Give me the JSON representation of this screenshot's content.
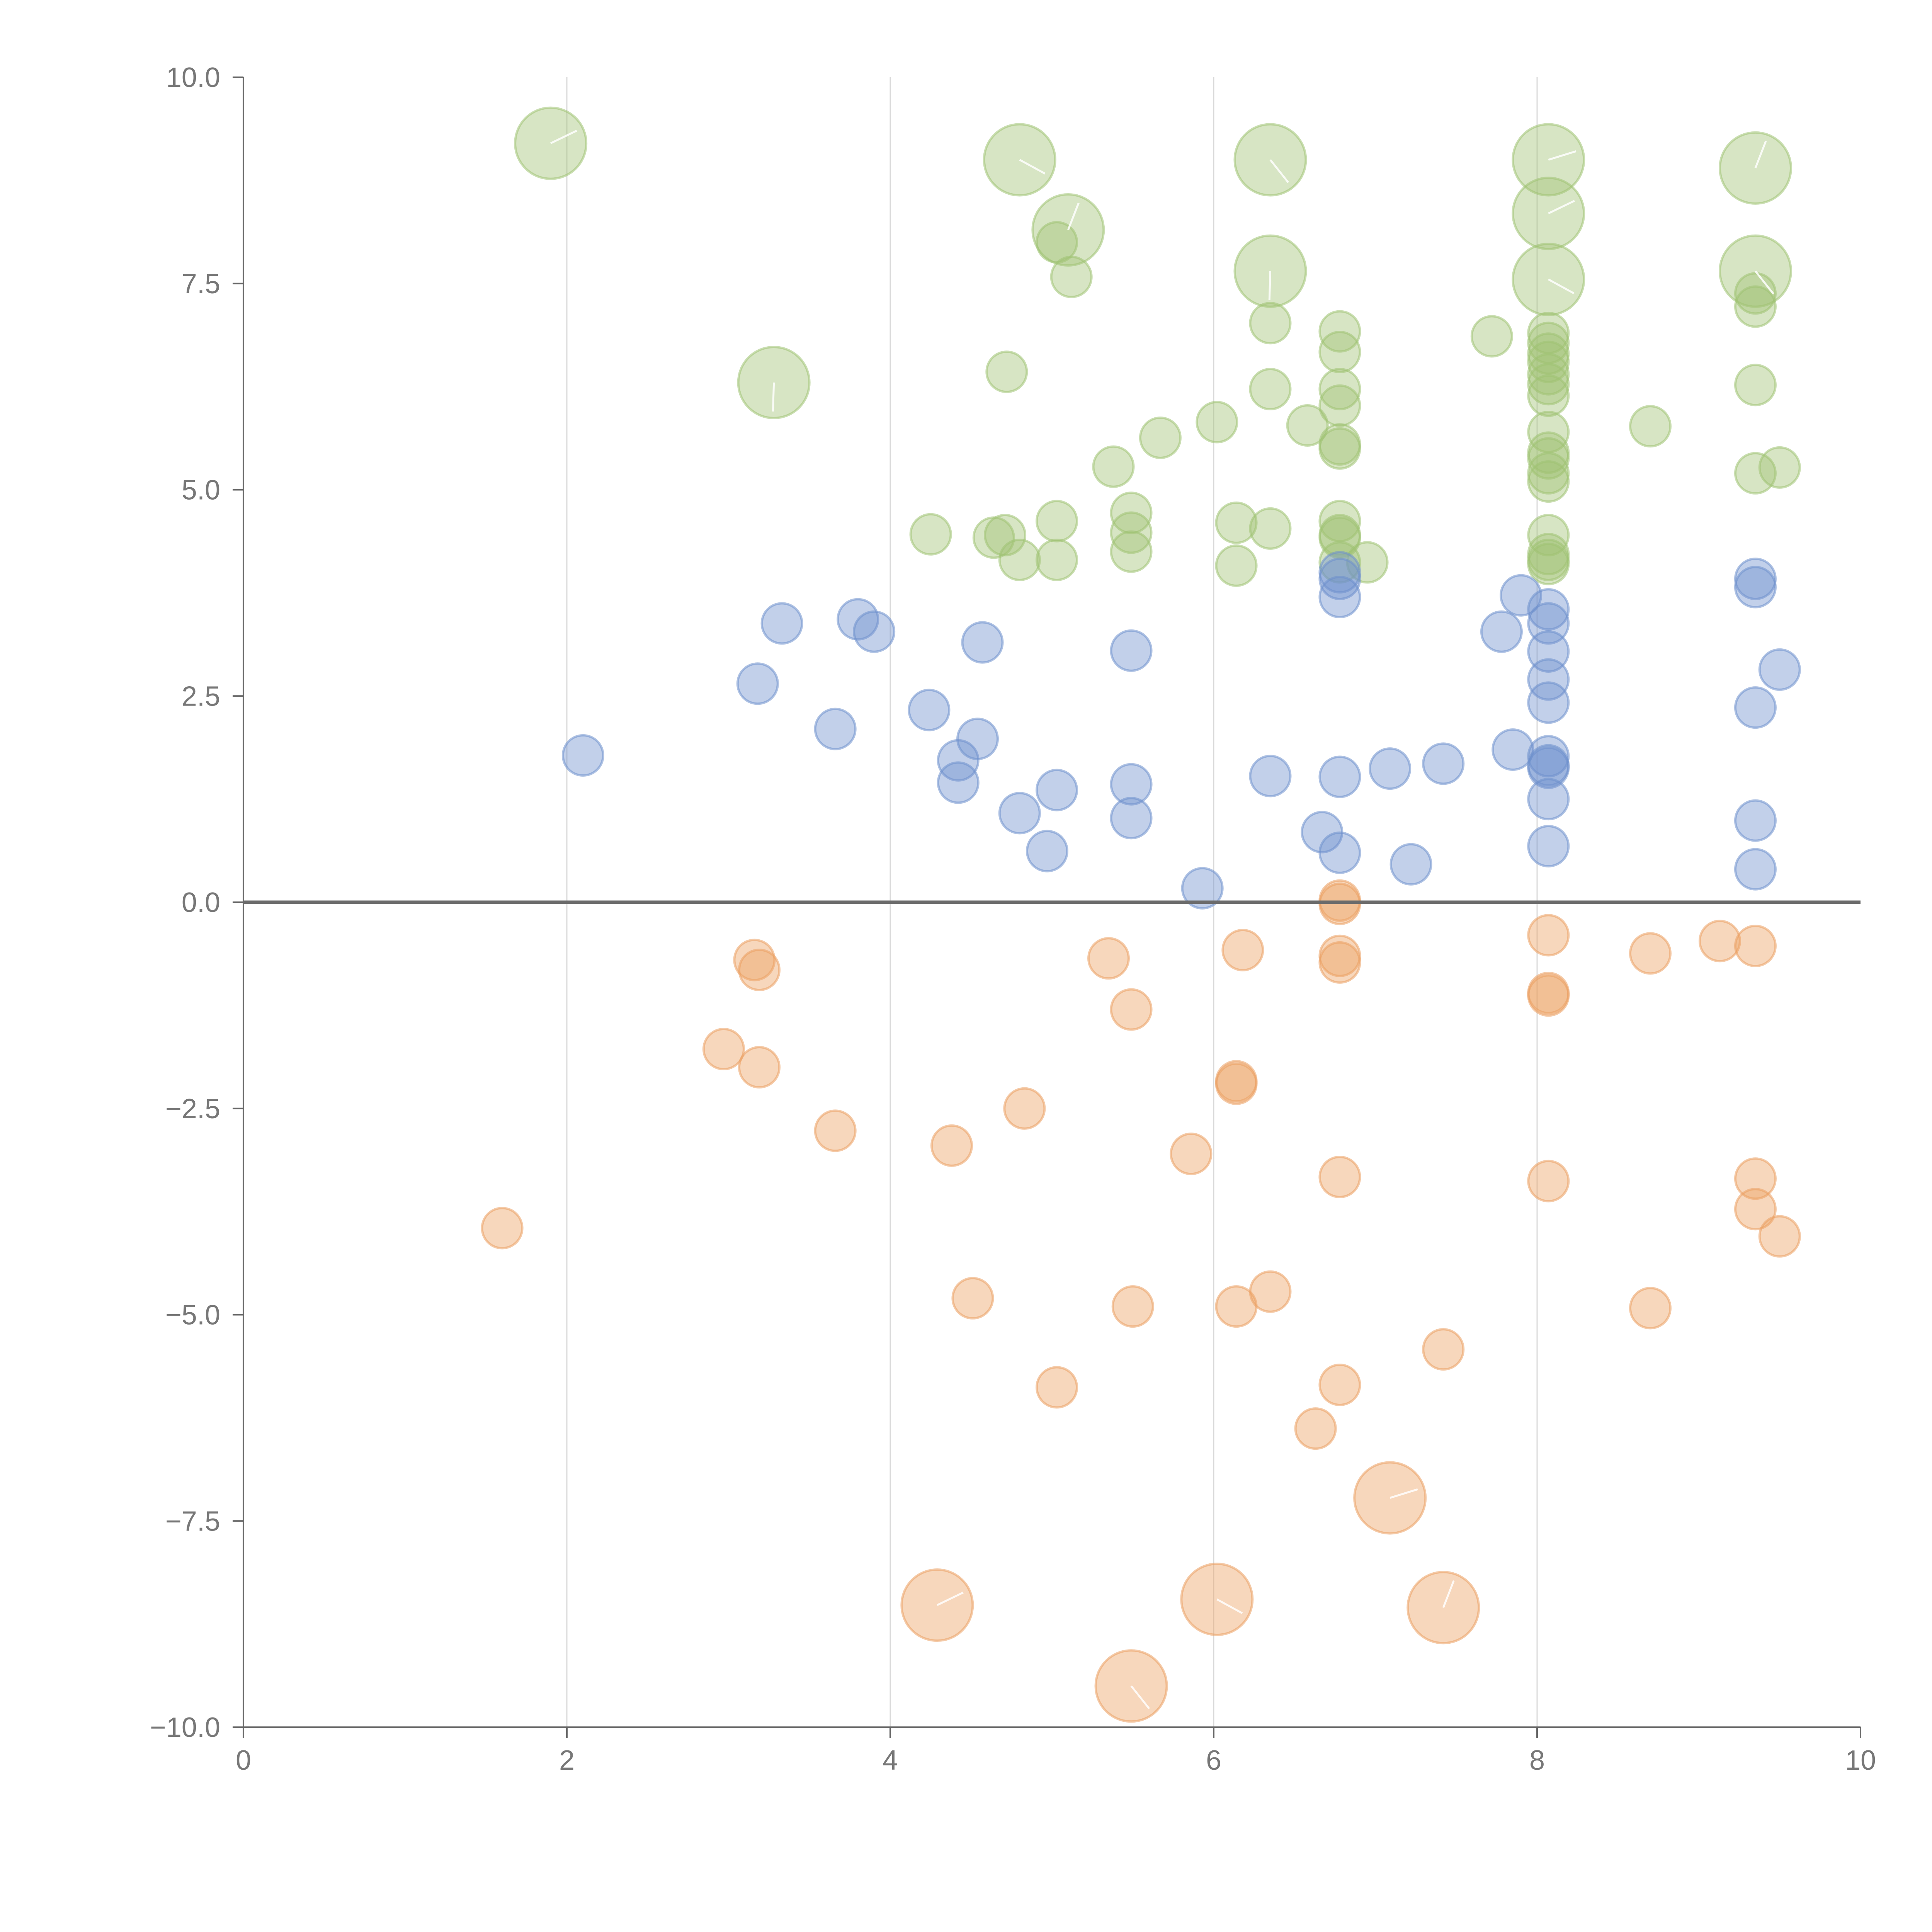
{
  "chart_data": {
    "type": "scatter",
    "title": "",
    "xlabel": "",
    "ylabel": "",
    "xlim": [
      0,
      10
    ],
    "ylim": [
      -10,
      10
    ],
    "xticks": [
      "0",
      "2",
      "4",
      "6",
      "8",
      "10"
    ],
    "yticks": [
      "10.0",
      "7.5",
      "5.0",
      "2.5",
      "0.0",
      "−2.5",
      "−5.0",
      "−7.5",
      "−10.0"
    ],
    "xtick_values": [
      0,
      2,
      4,
      6,
      8,
      10
    ],
    "ytick_values": [
      10,
      7.5,
      5,
      2.5,
      0,
      -2.5,
      -5,
      -7.5,
      -10
    ],
    "vertical_grid": [
      2,
      4,
      6,
      8
    ],
    "zero_line": 0,
    "legend": "none",
    "colors": {
      "green": "#9fc272",
      "blue": "#6e8fcc",
      "orange": "#eb9f60"
    },
    "series": [
      {
        "color": "#9fc272",
        "points": [
          [
            1.9,
            9.2,
            1
          ],
          [
            4.8,
            9.0,
            1
          ],
          [
            5.1,
            8.15,
            1
          ],
          [
            6.35,
            9.0,
            1
          ],
          [
            6.35,
            7.65,
            1
          ],
          [
            8.07,
            9.0,
            1
          ],
          [
            8.07,
            8.35,
            1
          ],
          [
            8.07,
            7.55,
            1
          ],
          [
            9.35,
            8.9,
            1
          ],
          [
            9.35,
            7.65,
            1
          ],
          [
            3.28,
            6.3,
            1
          ],
          [
            5.03,
            8.0,
            0
          ],
          [
            5.12,
            7.58,
            0
          ],
          [
            6.35,
            7.02,
            0
          ],
          [
            6.35,
            6.22,
            0
          ],
          [
            4.72,
            6.43,
            0
          ],
          [
            6.02,
            5.82,
            0
          ],
          [
            6.58,
            5.78,
            0
          ],
          [
            5.67,
            5.63,
            0
          ],
          [
            5.38,
            5.28,
            0
          ],
          [
            4.25,
            4.46,
            0
          ],
          [
            4.64,
            4.42,
            0
          ],
          [
            4.71,
            4.45,
            0
          ],
          [
            4.8,
            4.15,
            0
          ],
          [
            5.03,
            4.62,
            0
          ],
          [
            5.03,
            4.15,
            0
          ],
          [
            5.49,
            4.72,
            0
          ],
          [
            5.49,
            4.48,
            0
          ],
          [
            5.49,
            4.25,
            0
          ],
          [
            6.14,
            4.6,
            0
          ],
          [
            6.14,
            4.08,
            0
          ],
          [
            6.35,
            4.53,
            0
          ],
          [
            6.78,
            6.92,
            0
          ],
          [
            6.78,
            6.67,
            0
          ],
          [
            6.78,
            6.22,
            0
          ],
          [
            6.78,
            6.02,
            0
          ],
          [
            6.78,
            5.55,
            0
          ],
          [
            6.78,
            5.5,
            0
          ],
          [
            6.78,
            4.62,
            0
          ],
          [
            6.78,
            4.45,
            0
          ],
          [
            6.78,
            4.42,
            0
          ],
          [
            6.78,
            4.12,
            0
          ],
          [
            6.95,
            4.12,
            0
          ],
          [
            7.72,
            6.86,
            0
          ],
          [
            8.07,
            6.9,
            0
          ],
          [
            8.07,
            6.78,
            0
          ],
          [
            8.07,
            6.65,
            0
          ],
          [
            8.07,
            6.55,
            0
          ],
          [
            8.07,
            6.4,
            0
          ],
          [
            8.07,
            6.28,
            0
          ],
          [
            8.07,
            6.14,
            0
          ],
          [
            8.07,
            5.7,
            0
          ],
          [
            8.07,
            5.45,
            0
          ],
          [
            8.07,
            5.38,
            0
          ],
          [
            8.07,
            5.2,
            0
          ],
          [
            8.07,
            5.1,
            0
          ],
          [
            8.07,
            4.45,
            0
          ],
          [
            8.07,
            4.22,
            0
          ],
          [
            8.07,
            4.15,
            0
          ],
          [
            8.07,
            4.1,
            0
          ],
          [
            8.7,
            5.77,
            0
          ],
          [
            9.35,
            7.38,
            0
          ],
          [
            9.35,
            7.22,
            0
          ],
          [
            9.35,
            6.27,
            0
          ],
          [
            9.35,
            5.2,
            0
          ],
          [
            9.5,
            5.27,
            0
          ]
        ]
      },
      {
        "color": "#6e8fcc",
        "points": [
          [
            2.1,
            1.78,
            0
          ],
          [
            3.18,
            2.65,
            0
          ],
          [
            3.33,
            3.38,
            0
          ],
          [
            3.66,
            2.1,
            0
          ],
          [
            3.8,
            3.43,
            0
          ],
          [
            3.9,
            3.28,
            0
          ],
          [
            4.24,
            2.33,
            0
          ],
          [
            4.42,
            1.72,
            0
          ],
          [
            4.42,
            1.45,
            0
          ],
          [
            4.54,
            1.98,
            0
          ],
          [
            4.57,
            3.15,
            0
          ],
          [
            4.8,
            1.08,
            0
          ],
          [
            4.97,
            0.62,
            0
          ],
          [
            5.03,
            1.36,
            0
          ],
          [
            5.49,
            3.05,
            0
          ],
          [
            5.49,
            1.43,
            0
          ],
          [
            5.49,
            1.02,
            0
          ],
          [
            5.93,
            0.17,
            0
          ],
          [
            6.35,
            1.53,
            0
          ],
          [
            6.67,
            0.85,
            0
          ],
          [
            6.78,
            4.0,
            0
          ],
          [
            6.78,
            3.92,
            0
          ],
          [
            6.78,
            3.7,
            0
          ],
          [
            6.78,
            1.52,
            0
          ],
          [
            6.78,
            0.6,
            0
          ],
          [
            7.09,
            1.62,
            0
          ],
          [
            7.22,
            0.46,
            0
          ],
          [
            7.42,
            1.68,
            0
          ],
          [
            7.78,
            3.28,
            0
          ],
          [
            7.85,
            1.85,
            0
          ],
          [
            7.9,
            3.72,
            0
          ],
          [
            8.07,
            3.55,
            0
          ],
          [
            8.07,
            3.38,
            0
          ],
          [
            8.07,
            3.04,
            0
          ],
          [
            8.07,
            2.7,
            0
          ],
          [
            8.07,
            2.42,
            0
          ],
          [
            8.07,
            1.77,
            0
          ],
          [
            8.07,
            1.66,
            0
          ],
          [
            8.07,
            1.63,
            0
          ],
          [
            8.07,
            1.25,
            0
          ],
          [
            8.07,
            0.68,
            0
          ],
          [
            9.35,
            3.92,
            0
          ],
          [
            9.35,
            3.82,
            0
          ],
          [
            9.35,
            2.36,
            0
          ],
          [
            9.35,
            0.99,
            0
          ],
          [
            9.35,
            0.4,
            0
          ],
          [
            9.5,
            2.82,
            0
          ]
        ]
      },
      {
        "color": "#eb9f60",
        "points": [
          [
            1.6,
            -3.95,
            0
          ],
          [
            2.97,
            -1.78,
            0
          ],
          [
            3.16,
            -0.7,
            0
          ],
          [
            3.19,
            -0.82,
            0
          ],
          [
            3.19,
            -2.0,
            0
          ],
          [
            3.66,
            -2.77,
            0
          ],
          [
            4.38,
            -2.95,
            0
          ],
          [
            4.51,
            -4.8,
            0
          ],
          [
            4.83,
            -2.5,
            0
          ],
          [
            5.03,
            -5.88,
            0
          ],
          [
            5.35,
            -0.68,
            0
          ],
          [
            5.49,
            -1.3,
            0
          ],
          [
            5.5,
            -4.9,
            0
          ],
          [
            5.86,
            -3.05,
            0
          ],
          [
            6.14,
            -2.17,
            0
          ],
          [
            6.14,
            -2.2,
            0
          ],
          [
            6.14,
            -4.9,
            0
          ],
          [
            6.18,
            -0.58,
            0
          ],
          [
            6.35,
            -4.72,
            0
          ],
          [
            6.63,
            -6.38,
            0
          ],
          [
            6.78,
            0.02,
            0
          ],
          [
            6.78,
            -0.02,
            0
          ],
          [
            6.78,
            -0.65,
            0
          ],
          [
            6.78,
            -0.73,
            0
          ],
          [
            6.78,
            -3.33,
            0
          ],
          [
            6.78,
            -5.85,
            0
          ],
          [
            7.42,
            -5.42,
            0
          ],
          [
            8.07,
            -0.4,
            0
          ],
          [
            8.07,
            -1.1,
            0
          ],
          [
            8.07,
            -1.13,
            0
          ],
          [
            8.07,
            -3.38,
            0
          ],
          [
            8.7,
            -0.62,
            0
          ],
          [
            8.7,
            -4.92,
            0
          ],
          [
            9.13,
            -0.47,
            0
          ],
          [
            9.35,
            -0.53,
            0
          ],
          [
            9.35,
            -3.35,
            0
          ],
          [
            9.35,
            -3.72,
            0
          ],
          [
            9.5,
            -4.05,
            0
          ],
          [
            7.09,
            -7.22,
            1
          ],
          [
            4.29,
            -8.52,
            1
          ],
          [
            6.02,
            -8.45,
            1
          ],
          [
            7.42,
            -8.55,
            1
          ],
          [
            5.49,
            -9.5,
            1
          ]
        ]
      }
    ]
  }
}
